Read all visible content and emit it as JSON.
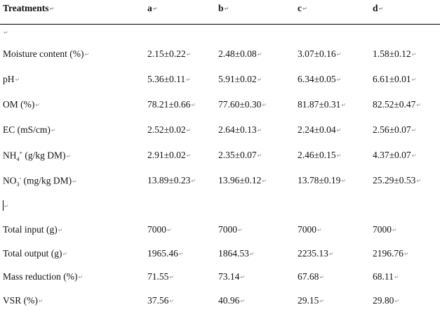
{
  "header": {
    "label": "Treatments",
    "columns": [
      "a",
      "b",
      "c",
      "d"
    ]
  },
  "group1": [
    {
      "label": "Moisture content (%)",
      "values": [
        "2.15±0.22",
        "2.48±0.08",
        "3.07±0.16",
        "1.58±0.12"
      ]
    },
    {
      "label": "pH",
      "values": [
        "5.36±0.11",
        "5.91±0.02",
        "6.34±0.05",
        "6.61±0.01"
      ]
    },
    {
      "label": "OM (%)",
      "values": [
        "78.21±0.66",
        "77.60±0.30",
        "81.87±0.31",
        "82.52±0.47"
      ]
    },
    {
      "label": "EC (mS/cm)",
      "values": [
        "2.52±0.02",
        "2.64±0.13",
        "2.24±0.04",
        "2.56±0.07"
      ]
    },
    {
      "label_base": "NH",
      "label_sub": "4",
      "label_sup": "+",
      "label_rest": " (g/kg DM)",
      "values": [
        "2.91±0.02",
        "2.35±0.07",
        "2.46±0.15",
        "4.37±0.07"
      ]
    },
    {
      "label_base": "NO",
      "label_sub": "3",
      "label_sup": "-",
      "label_rest": " (mg/kg DM)",
      "values": [
        "13.89±0.23",
        "13.96±0.12",
        "13.78±0.19",
        "25.29±0.53"
      ]
    }
  ],
  "group2": [
    {
      "label": "Total input (g)",
      "values": [
        "7000",
        "7000",
        "7000",
        "7000"
      ]
    },
    {
      "label": "Total output (g)",
      "values": [
        "1965.46",
        "1864.53",
        "2235.13",
        "2196.76"
      ]
    },
    {
      "label": "Mass reduction (%)",
      "values": [
        "71.55",
        "73.14",
        "67.68",
        "68.11"
      ]
    },
    {
      "label": "VSR (%)",
      "values": [
        "37.56",
        "40.96",
        "29.15",
        "29.80"
      ]
    }
  ]
}
